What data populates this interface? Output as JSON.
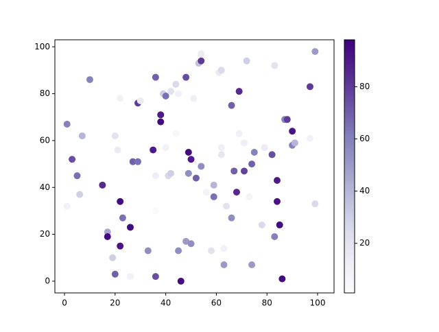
{
  "chart_data": {
    "type": "scatter",
    "x": [
      1,
      1,
      3,
      5,
      6,
      7,
      10,
      15,
      17,
      17,
      19,
      20,
      20,
      21,
      22,
      22,
      22,
      23,
      26,
      26,
      27,
      29,
      29,
      30,
      33,
      35,
      36,
      36,
      36,
      36,
      38,
      38,
      39,
      40,
      40,
      41,
      42,
      42,
      44,
      44,
      45,
      45,
      46,
      48,
      48,
      49,
      49,
      50,
      50,
      51,
      52,
      53,
      54,
      54,
      54,
      56,
      58,
      59,
      59,
      61,
      62,
      62,
      62,
      63,
      63,
      64,
      66,
      66,
      67,
      68,
      69,
      69,
      71,
      71,
      72,
      73,
      74,
      74,
      75,
      78,
      79,
      82,
      83,
      83,
      84,
      84,
      85,
      86,
      87,
      88,
      90,
      90,
      91,
      97,
      97,
      99,
      99
    ],
    "values": [
      67,
      32,
      52,
      45,
      37,
      62,
      86,
      41,
      21,
      19,
      10,
      62,
      3,
      56,
      78,
      34,
      15,
      27,
      23,
      2,
      51,
      76,
      51,
      77,
      13,
      56,
      87,
      2,
      45,
      30,
      71,
      68,
      80,
      79,
      57,
      45,
      81,
      46,
      84,
      63,
      80,
      13,
      0,
      87,
      17,
      55,
      46,
      52,
      16,
      78,
      44,
      93,
      94,
      97,
      49,
      38,
      13,
      41,
      36,
      89,
      90,
      57,
      54,
      14,
      7,
      32,
      27,
      75,
      47,
      38,
      81,
      63,
      47,
      59,
      94,
      36,
      50,
      7,
      55,
      24,
      57,
      54,
      19,
      92,
      43,
      34,
      24,
      1,
      69,
      69,
      64,
      58,
      59,
      61,
      83,
      98,
      33
    ],
    "color_values": [
      60,
      10,
      75,
      65,
      30,
      40,
      60,
      85,
      45,
      95,
      30,
      20,
      70,
      15,
      10,
      95,
      92,
      65,
      95,
      10,
      70,
      80,
      65,
      15,
      55,
      90,
      70,
      75,
      12,
      3,
      90,
      95,
      30,
      65,
      10,
      25,
      20,
      30,
      25,
      5,
      10,
      55,
      95,
      75,
      50,
      95,
      55,
      90,
      55,
      12,
      70,
      35,
      80,
      15,
      55,
      8,
      20,
      40,
      65,
      15,
      25,
      12,
      18,
      10,
      50,
      20,
      55,
      70,
      70,
      85,
      85,
      10,
      78,
      12,
      30,
      8,
      70,
      50,
      60,
      25,
      15,
      75,
      60,
      20,
      90,
      92,
      95,
      95,
      60,
      80,
      92,
      60,
      40,
      10,
      80,
      50,
      25
    ],
    "colormap": "Purples",
    "xlim": [
      -3.8,
      106.5
    ],
    "ylim": [
      -5,
      103
    ],
    "xticks": [
      0,
      20,
      40,
      60,
      80,
      100
    ],
    "yticks": [
      0,
      20,
      40,
      60,
      80,
      100
    ],
    "colorbar": {
      "lim": [
        1,
        98
      ],
      "ticks": [
        20,
        40,
        60,
        80
      ]
    }
  }
}
